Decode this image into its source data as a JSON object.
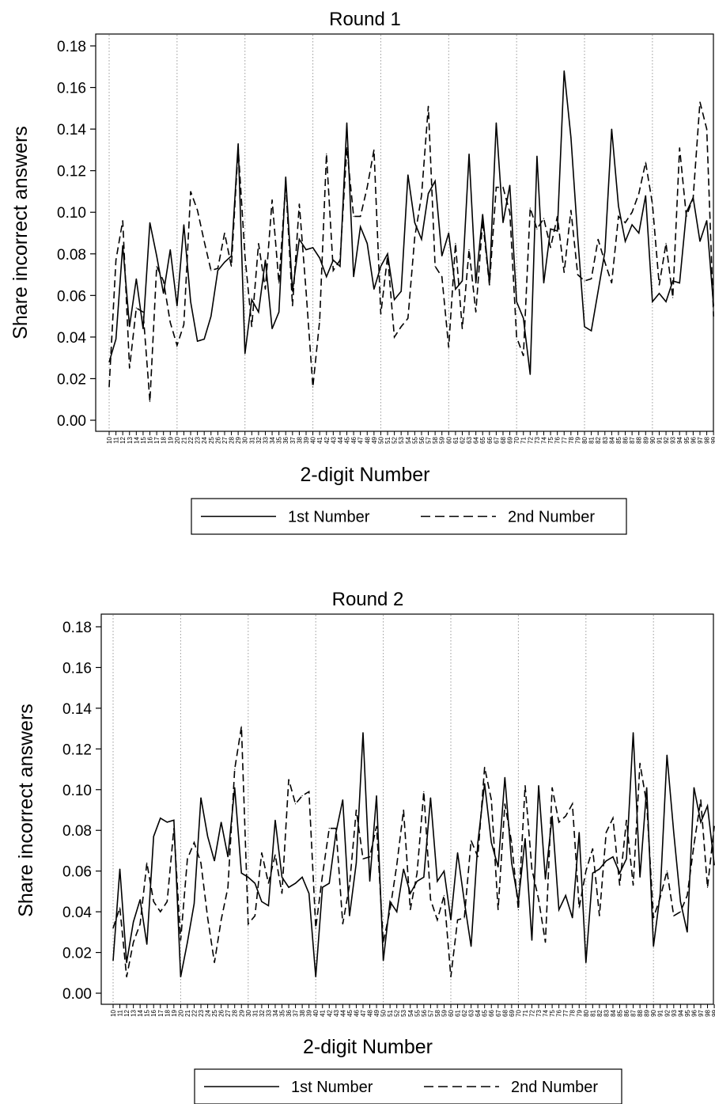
{
  "chart_data": [
    {
      "type": "line",
      "title": "Round 1",
      "xlabel": "2-digit Number",
      "ylabel": "Share incorrect answers",
      "ylim": [
        0,
        0.18
      ],
      "yticks": [
        "0.00",
        "0.02",
        "0.04",
        "0.06",
        "0.08",
        "0.10",
        "0.12",
        "0.14",
        "0.16",
        "0.18"
      ],
      "x": [
        10,
        11,
        12,
        13,
        14,
        15,
        16,
        17,
        18,
        19,
        20,
        21,
        22,
        23,
        24,
        25,
        26,
        27,
        28,
        29,
        30,
        31,
        32,
        33,
        34,
        35,
        36,
        37,
        38,
        39,
        40,
        41,
        42,
        43,
        44,
        45,
        46,
        47,
        48,
        49,
        50,
        51,
        52,
        53,
        54,
        55,
        56,
        57,
        58,
        59,
        60,
        61,
        62,
        63,
        64,
        65,
        66,
        67,
        68,
        69,
        70,
        71,
        72,
        73,
        74,
        75,
        76,
        77,
        78,
        79,
        80,
        81,
        82,
        83,
        84,
        85,
        86,
        87,
        88,
        89,
        90,
        91,
        92,
        93,
        94,
        95,
        96,
        97,
        98,
        99
      ],
      "vlines": [
        10,
        20,
        30,
        40,
        50,
        60,
        70,
        80,
        90
      ],
      "grid": false,
      "legend": "bottom",
      "series": [
        {
          "name": "1st Number",
          "dash": "solid",
          "values": [
            0.028,
            0.039,
            0.084,
            0.045,
            0.068,
            0.044,
            0.095,
            0.079,
            0.061,
            0.082,
            0.055,
            0.094,
            0.057,
            0.038,
            0.039,
            0.05,
            0.072,
            0.076,
            0.079,
            0.133,
            0.032,
            0.058,
            0.052,
            0.077,
            0.044,
            0.052,
            0.117,
            0.062,
            0.087,
            0.082,
            0.083,
            0.078,
            0.069,
            0.077,
            0.074,
            0.143,
            0.069,
            0.093,
            0.085,
            0.063,
            0.074,
            0.08,
            0.058,
            0.062,
            0.118,
            0.095,
            0.087,
            0.109,
            0.115,
            0.079,
            0.09,
            0.063,
            0.067,
            0.128,
            0.066,
            0.099,
            0.066,
            0.143,
            0.095,
            0.113,
            0.057,
            0.049,
            0.022,
            0.127,
            0.066,
            0.092,
            0.091,
            0.168,
            0.136,
            0.088,
            0.045,
            0.043,
            0.062,
            0.081,
            0.14,
            0.103,
            0.086,
            0.094,
            0.09,
            0.108,
            0.057,
            0.061,
            0.057,
            0.067,
            0.066,
            0.1,
            0.107,
            0.086,
            0.096,
            0.055
          ]
        },
        {
          "name": "2nd Number",
          "dash": "dashed",
          "values": [
            0.016,
            0.077,
            0.096,
            0.025,
            0.054,
            0.052,
            0.009,
            0.074,
            0.067,
            0.047,
            0.036,
            0.046,
            0.11,
            0.101,
            0.086,
            0.072,
            0.073,
            0.09,
            0.074,
            0.131,
            0.079,
            0.045,
            0.085,
            0.063,
            0.106,
            0.066,
            0.114,
            0.055,
            0.104,
            0.062,
            0.016,
            0.048,
            0.128,
            0.072,
            0.077,
            0.131,
            0.098,
            0.098,
            0.112,
            0.13,
            0.051,
            0.079,
            0.04,
            0.045,
            0.049,
            0.088,
            0.108,
            0.151,
            0.074,
            0.069,
            0.035,
            0.085,
            0.044,
            0.082,
            0.052,
            0.096,
            0.065,
            0.112,
            0.112,
            0.1,
            0.04,
            0.031,
            0.102,
            0.092,
            0.097,
            0.083,
            0.098,
            0.071,
            0.101,
            0.07,
            0.067,
            0.068,
            0.087,
            0.076,
            0.066,
            0.098,
            0.095,
            0.1,
            0.109,
            0.124,
            0.104,
            0.065,
            0.085,
            0.059,
            0.131,
            0.098,
            0.107,
            0.153,
            0.14,
            0.05
          ]
        }
      ]
    },
    {
      "type": "line",
      "title": "Round 2",
      "xlabel": "2-digit Number",
      "ylabel": "Share incorrect answers",
      "ylim": [
        0,
        0.18
      ],
      "yticks": [
        "0.00",
        "0.02",
        "0.04",
        "0.06",
        "0.08",
        "0.10",
        "0.12",
        "0.14",
        "0.16",
        "0.18"
      ],
      "x": [
        10,
        11,
        12,
        13,
        14,
        15,
        16,
        17,
        18,
        19,
        20,
        21,
        22,
        23,
        24,
        25,
        26,
        27,
        28,
        29,
        30,
        31,
        32,
        33,
        34,
        35,
        36,
        37,
        38,
        39,
        40,
        41,
        42,
        43,
        44,
        45,
        46,
        47,
        48,
        49,
        50,
        51,
        52,
        53,
        54,
        55,
        56,
        57,
        58,
        59,
        60,
        61,
        62,
        63,
        64,
        65,
        66,
        67,
        68,
        69,
        70,
        71,
        72,
        73,
        74,
        75,
        76,
        77,
        78,
        79,
        80,
        81,
        82,
        83,
        84,
        85,
        86,
        87,
        88,
        89,
        90,
        91,
        92,
        93,
        94,
        95,
        96,
        97,
        98,
        99
      ],
      "vlines": [
        10,
        20,
        30,
        40,
        50,
        60,
        70,
        80,
        90
      ],
      "grid": false,
      "legend": "bottom",
      "series": [
        {
          "name": "1st Number",
          "dash": "solid",
          "values": [
            0.016,
            0.061,
            0.015,
            0.035,
            0.046,
            0.024,
            0.077,
            0.086,
            0.084,
            0.085,
            0.008,
            0.025,
            0.044,
            0.096,
            0.077,
            0.065,
            0.084,
            0.067,
            0.101,
            0.059,
            0.057,
            0.054,
            0.045,
            0.043,
            0.085,
            0.057,
            0.052,
            0.054,
            0.057,
            0.049,
            0.008,
            0.052,
            0.054,
            0.079,
            0.095,
            0.038,
            0.064,
            0.128,
            0.055,
            0.097,
            0.016,
            0.045,
            0.04,
            0.061,
            0.049,
            0.055,
            0.057,
            0.096,
            0.055,
            0.06,
            0.036,
            0.069,
            0.045,
            0.023,
            0.074,
            0.103,
            0.074,
            0.062,
            0.106,
            0.064,
            0.045,
            0.076,
            0.026,
            0.102,
            0.056,
            0.087,
            0.041,
            0.048,
            0.037,
            0.079,
            0.015,
            0.059,
            0.061,
            0.065,
            0.067,
            0.059,
            0.066,
            0.128,
            0.057,
            0.101,
            0.023,
            0.049,
            0.117,
            0.079,
            0.045,
            0.03,
            0.101,
            0.084,
            0.092,
            0.063
          ]
        },
        {
          "name": "2nd Number",
          "dash": "dashed",
          "values": [
            0.032,
            0.042,
            0.008,
            0.025,
            0.034,
            0.064,
            0.045,
            0.04,
            0.045,
            0.081,
            0.026,
            0.066,
            0.074,
            0.064,
            0.037,
            0.015,
            0.036,
            0.052,
            0.11,
            0.131,
            0.034,
            0.038,
            0.069,
            0.054,
            0.068,
            0.049,
            0.105,
            0.093,
            0.097,
            0.099,
            0.032,
            0.058,
            0.081,
            0.081,
            0.034,
            0.053,
            0.09,
            0.066,
            0.067,
            0.082,
            0.025,
            0.041,
            0.063,
            0.09,
            0.041,
            0.059,
            0.099,
            0.046,
            0.036,
            0.048,
            0.008,
            0.036,
            0.037,
            0.075,
            0.067,
            0.111,
            0.095,
            0.041,
            0.093,
            0.074,
            0.041,
            0.102,
            0.061,
            0.046,
            0.025,
            0.101,
            0.084,
            0.087,
            0.093,
            0.042,
            0.06,
            0.071,
            0.038,
            0.079,
            0.086,
            0.053,
            0.085,
            0.053,
            0.113,
            0.093,
            0.037,
            0.047,
            0.06,
            0.038,
            0.04,
            0.048,
            0.073,
            0.095,
            0.052,
            0.082
          ]
        }
      ]
    }
  ]
}
